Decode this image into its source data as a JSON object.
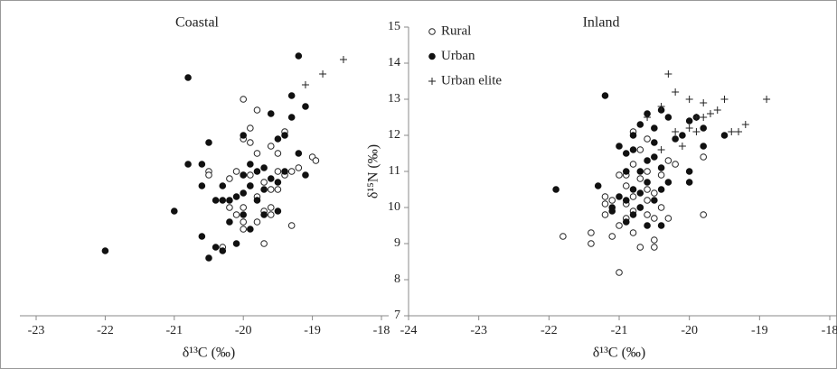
{
  "chart_data": [
    {
      "type": "scatter",
      "title": "Coastal",
      "x_label": "δ¹³C (‰)",
      "xlim": [
        -23,
        -18
      ],
      "xticks": [
        -23,
        -22,
        -21,
        -20,
        -19,
        -18
      ],
      "ylim": [
        7,
        15
      ],
      "series": [
        {
          "marker": "open-circle",
          "color": "#222222",
          "x": [
            -20.5,
            -20.5,
            -20.3,
            -20.0,
            -20.0,
            -19.9,
            -19.9,
            -19.8,
            -20.1,
            -20.0,
            -19.9,
            -19.9,
            -20.0,
            -20.0,
            -20.0,
            -20.1,
            -19.8,
            -19.7,
            -19.7,
            -19.6,
            -19.6,
            -19.6,
            -19.5,
            -19.5,
            -19.5,
            -19.4,
            -19.4,
            -19.3,
            -19.3,
            -19.2,
            -19.0,
            -18.95,
            -20.2,
            -19.8,
            -19.6,
            -19.8,
            -19.7,
            -20.2
          ],
          "values": [
            11.0,
            10.9,
            8.9,
            13.0,
            11.9,
            12.2,
            11.8,
            12.7,
            11.0,
            10.9,
            10.9,
            10.6,
            10.0,
            9.6,
            9.4,
            9.8,
            9.6,
            9.0,
            9.9,
            10.5,
            10.0,
            11.7,
            11.5,
            11.0,
            10.5,
            12.1,
            10.9,
            11.0,
            9.5,
            11.1,
            11.4,
            11.3,
            10.0,
            10.3,
            9.8,
            11.5,
            10.7,
            10.8
          ]
        },
        {
          "marker": "filled-circle",
          "color": "#111111",
          "x": [
            -22,
            -21,
            -20.8,
            -20.8,
            -20.6,
            -20.6,
            -20.6,
            -20.5,
            -20.5,
            -20.4,
            -20.4,
            -20.3,
            -20.3,
            -20.3,
            -20.2,
            -20.2,
            -20.1,
            -20.1,
            -20.0,
            -20.0,
            -20.0,
            -20.0,
            -19.9,
            -19.9,
            -19.9,
            -19.8,
            -19.8,
            -19.7,
            -19.7,
            -19.6,
            -19.6,
            -19.5,
            -19.5,
            -19.4,
            -19.4,
            -19.3,
            -19.3,
            -19.2,
            -19.2,
            -19.1,
            -19.1,
            -19.5,
            -19.7
          ],
          "values": [
            8.8,
            9.9,
            13.6,
            11.2,
            11.2,
            10.6,
            9.2,
            8.6,
            11.8,
            10.2,
            8.9,
            10.6,
            10.2,
            8.8,
            10.2,
            9.6,
            10.3,
            9.0,
            12.0,
            10.9,
            10.4,
            9.8,
            11.2,
            10.6,
            9.4,
            11.0,
            10.2,
            11.1,
            10.5,
            12.6,
            10.8,
            11.9,
            10.7,
            12.0,
            11.0,
            13.1,
            12.5,
            14.2,
            11.5,
            12.8,
            10.9,
            9.9,
            9.8
          ]
        },
        {
          "marker": "plus",
          "color": "#222222",
          "x": [
            -19.1,
            -18.85,
            -18.55
          ],
          "values": [
            13.4,
            13.7,
            14.1
          ]
        }
      ]
    },
    {
      "type": "scatter",
      "title": "Inland",
      "x_label": "δ¹³C (‰)",
      "y_label": "δ¹⁵N (‰)",
      "xlim": [
        -24,
        -18
      ],
      "xticks": [
        -24,
        -23,
        -22,
        -21,
        -20,
        -19,
        -18
      ],
      "ylim": [
        7,
        15
      ],
      "yticks": [
        7,
        8,
        9,
        10,
        11,
        12,
        13,
        14,
        15
      ],
      "legend": "top-left",
      "series": [
        {
          "name": "Rural",
          "marker": "open-circle",
          "color": "#222222",
          "x": [
            -21.8,
            -21.4,
            -21.4,
            -21.2,
            -21.2,
            -21.1,
            -21.1,
            -21.0,
            -21.0,
            -21.0,
            -20.9,
            -20.9,
            -20.9,
            -20.8,
            -20.8,
            -20.8,
            -20.8,
            -20.7,
            -20.7,
            -20.7,
            -20.7,
            -20.6,
            -20.6,
            -20.6,
            -20.5,
            -20.5,
            -20.5,
            -20.5,
            -20.4,
            -20.4,
            -20.3,
            -20.3,
            -20.6,
            -20.8,
            -20.2,
            -19.8,
            -19.8,
            -21.2,
            -20.9,
            -20.6
          ],
          "values": [
            9.2,
            9.0,
            9.3,
            9.8,
            10.3,
            10.2,
            9.2,
            8.2,
            9.5,
            10.9,
            9.7,
            10.1,
            10.6,
            9.3,
            9.9,
            10.3,
            11.2,
            8.9,
            10.0,
            10.8,
            11.6,
            9.8,
            10.5,
            11.0,
            9.1,
            8.9,
            9.7,
            10.4,
            10.0,
            10.9,
            11.3,
            9.7,
            11.9,
            12.1,
            11.2,
            11.4,
            9.8,
            10.1,
            10.9,
            10.2
          ]
        },
        {
          "name": "Urban",
          "marker": "filled-circle",
          "color": "#111111",
          "x": [
            -21.9,
            -21.3,
            -21.2,
            -21.1,
            -21.1,
            -21.0,
            -21.0,
            -20.9,
            -20.9,
            -20.9,
            -20.8,
            -20.8,
            -20.8,
            -20.8,
            -20.7,
            -20.7,
            -20.7,
            -20.6,
            -20.6,
            -20.6,
            -20.6,
            -20.5,
            -20.5,
            -20.5,
            -20.4,
            -20.4,
            -20.4,
            -20.4,
            -20.3,
            -20.3,
            -20.2,
            -20.1,
            -20.0,
            -20.0,
            -20.0,
            -19.9,
            -19.8,
            -19.8,
            -19.5,
            -20.5,
            -20.7,
            -20.9
          ],
          "values": [
            10.5,
            10.6,
            13.1,
            10.0,
            9.9,
            11.7,
            10.3,
            11.5,
            11.0,
            9.6,
            12.0,
            11.6,
            10.5,
            9.8,
            12.3,
            11.0,
            10.0,
            12.6,
            11.3,
            10.7,
            9.5,
            12.2,
            11.4,
            10.2,
            12.7,
            11.1,
            10.5,
            9.5,
            12.5,
            10.7,
            11.9,
            12.0,
            12.4,
            11.0,
            10.7,
            12.5,
            11.7,
            12.2,
            12.0,
            11.8,
            10.4,
            10.2
          ]
        },
        {
          "name": "Urban elite",
          "marker": "plus",
          "color": "#222222",
          "x": [
            -20.3,
            -20.2,
            -20.0,
            -19.9,
            -19.9,
            -19.8,
            -19.8,
            -19.7,
            -19.6,
            -19.5,
            -19.4,
            -19.3,
            -19.2,
            -18.9,
            -20.0,
            -20.1,
            -20.2,
            -20.4,
            -20.6,
            -20.4
          ],
          "values": [
            13.7,
            13.2,
            13.0,
            12.5,
            12.1,
            12.9,
            12.5,
            12.6,
            12.7,
            13.0,
            12.1,
            12.1,
            12.3,
            13.0,
            12.2,
            11.7,
            12.1,
            11.6,
            12.5,
            12.8
          ]
        }
      ]
    }
  ]
}
